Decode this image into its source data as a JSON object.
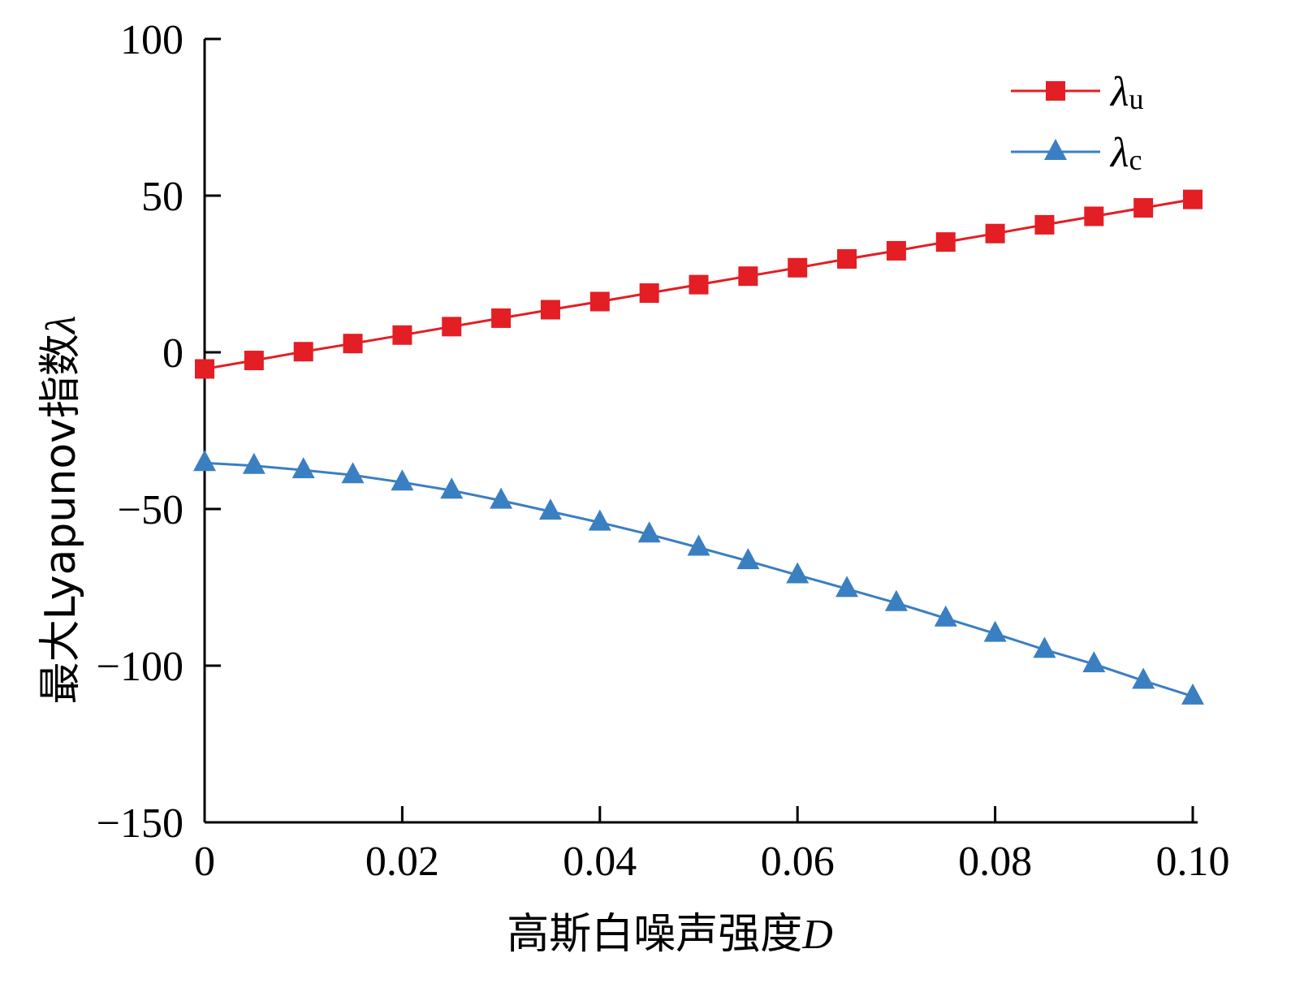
{
  "chart_data": {
    "type": "line",
    "xlabel": "高斯白噪声强度",
    "xlabel_var": "D",
    "ylabel": "最大Lyapunov指数",
    "ylabel_var": "λ",
    "xlim": [
      0,
      0.1
    ],
    "ylim": [
      -150,
      100
    ],
    "x_ticks": [
      "0",
      "0.02",
      "0.04",
      "0.06",
      "0.08",
      "0.10"
    ],
    "y_ticks": [
      "100",
      "50",
      "0",
      "−50",
      "−100",
      "−150"
    ],
    "x": [
      0,
      0.005,
      0.01,
      0.015,
      0.02,
      0.025,
      0.03,
      0.035,
      0.04,
      0.045,
      0.05,
      0.055,
      0.06,
      0.065,
      0.07,
      0.075,
      0.08,
      0.085,
      0.09,
      0.095,
      0.1
    ],
    "grid": false,
    "legend_position": "top-right",
    "series": [
      {
        "name": "λ",
        "name_sub": "u",
        "color": "#e31e24",
        "marker": "square",
        "values": [
          -5.3,
          -2.6,
          0.2,
          2.8,
          5.5,
          8.2,
          10.9,
          13.6,
          16.2,
          18.9,
          21.6,
          24.3,
          27.0,
          29.8,
          32.4,
          35.2,
          37.9,
          40.7,
          43.4,
          46.1,
          48.8
        ]
      },
      {
        "name": "λ",
        "name_sub": "c",
        "color": "#3a7fc1",
        "marker": "triangle",
        "values": [
          -35.3,
          -36.2,
          -37.6,
          -39.2,
          -41.5,
          -44.1,
          -47.3,
          -50.8,
          -54.3,
          -58.1,
          -62.3,
          -66.6,
          -71.1,
          -75.5,
          -80.0,
          -84.9,
          -89.8,
          -94.9,
          -99.5,
          -104.8,
          -109.8
        ]
      }
    ]
  }
}
